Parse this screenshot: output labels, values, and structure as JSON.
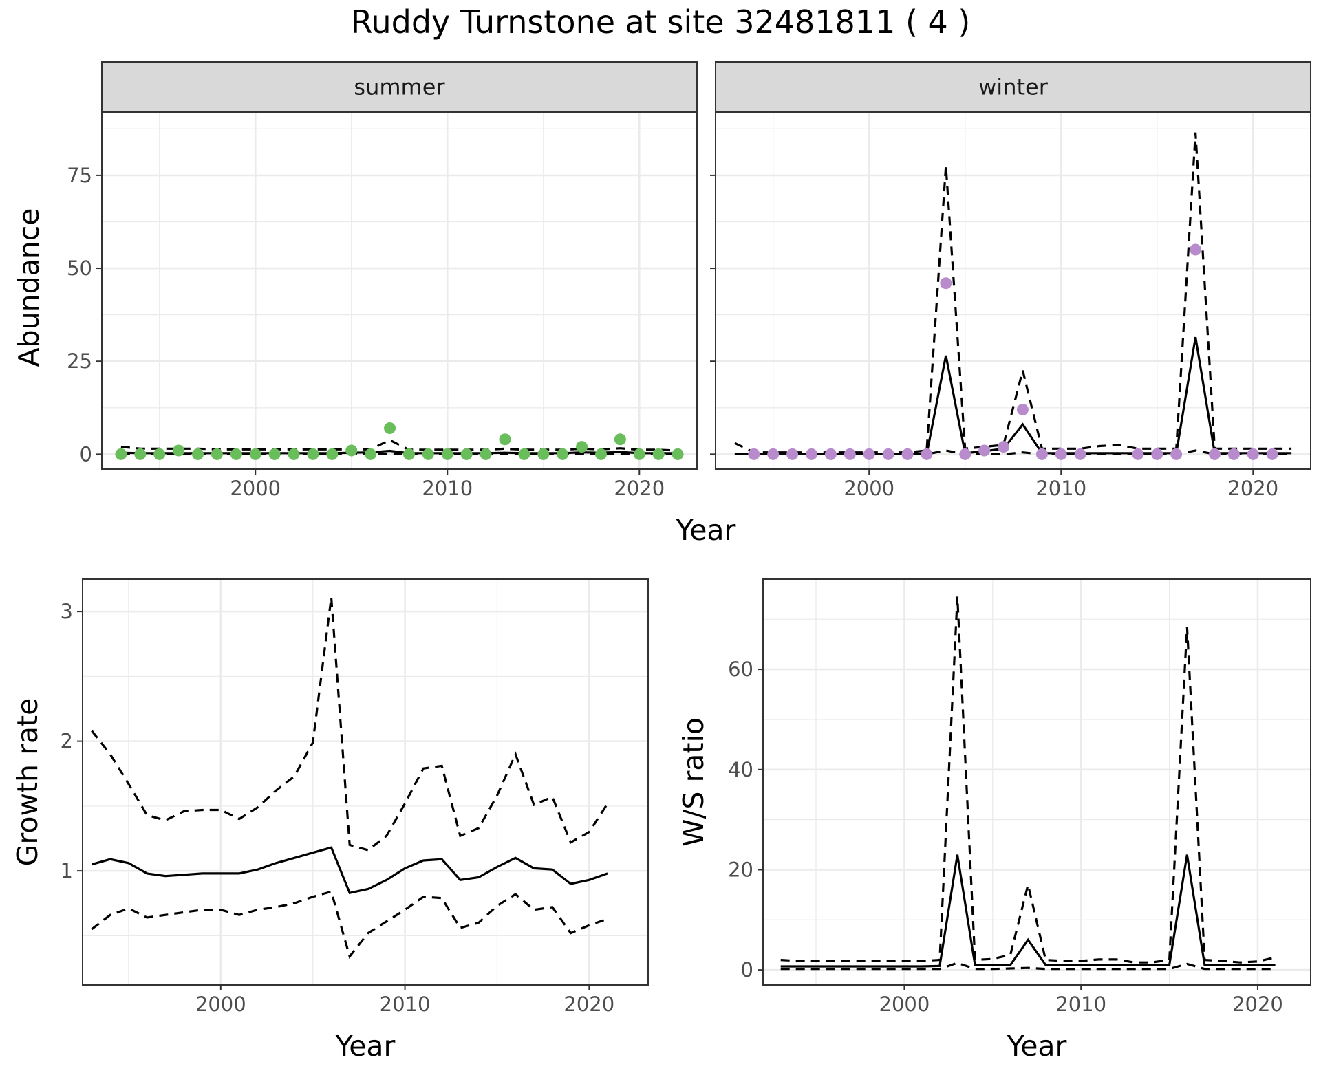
{
  "title": "Ruddy Turnstone at site 32481811 ( 4 )",
  "top_xlabel": "Year",
  "top_ylabel": "Abundance",
  "colors": {
    "summer": "#6abd5b",
    "winter": "#b88ccc",
    "line": "#000000"
  },
  "chart_data": [
    {
      "type": "line",
      "facet": "summer",
      "xlim": [
        1992,
        2023
      ],
      "ylim": [
        -4,
        92
      ],
      "x_ticks": [
        2000,
        2010,
        2020
      ],
      "y_ticks": [
        0,
        25,
        50,
        75
      ],
      "xlabel": "Year",
      "ylabel": "Abundance",
      "estimate": {
        "x": [
          1993,
          1994,
          1995,
          1996,
          1997,
          1998,
          1999,
          2000,
          2001,
          2002,
          2003,
          2004,
          2005,
          2006,
          2007,
          2008,
          2009,
          2010,
          2011,
          2012,
          2013,
          2014,
          2015,
          2016,
          2017,
          2018,
          2019,
          2020,
          2021,
          2022
        ],
        "y": [
          0.4,
          0.3,
          0.3,
          0.3,
          0.3,
          0.3,
          0.3,
          0.3,
          0.3,
          0.3,
          0.3,
          0.3,
          0.4,
          0.5,
          0.9,
          0.3,
          0.3,
          0.3,
          0.3,
          0.3,
          0.4,
          0.3,
          0.3,
          0.3,
          0.5,
          0.4,
          0.6,
          0.3,
          0.3,
          0.3
        ]
      },
      "upper": {
        "x": [
          1993,
          1994,
          1995,
          1996,
          1997,
          1998,
          1999,
          2000,
          2001,
          2002,
          2003,
          2004,
          2005,
          2006,
          2007,
          2008,
          2009,
          2010,
          2011,
          2012,
          2013,
          2014,
          2015,
          2016,
          2017,
          2018,
          2019,
          2020,
          2021,
          2022
        ],
        "y": [
          2,
          1.5,
          1.5,
          1.5,
          1.5,
          1.3,
          1.3,
          1.3,
          1.3,
          1.3,
          1.3,
          1.3,
          1.3,
          1.3,
          3.8,
          1.2,
          1.2,
          1.2,
          1.2,
          1.2,
          1.5,
          1.2,
          1.2,
          1.2,
          1.5,
          1.3,
          1.6,
          1.2,
          1.2,
          1
        ]
      },
      "lower": {
        "x": [
          1993,
          1994,
          1995,
          1996,
          1997,
          1998,
          1999,
          2000,
          2001,
          2002,
          2003,
          2004,
          2005,
          2006,
          2007,
          2008,
          2009,
          2010,
          2011,
          2012,
          2013,
          2014,
          2015,
          2016,
          2017,
          2018,
          2019,
          2020,
          2021,
          2022
        ],
        "y": [
          0,
          0,
          0,
          0,
          0,
          0,
          0,
          0,
          0,
          0,
          0,
          0,
          0,
          0,
          0.1,
          0,
          0,
          0,
          0,
          0,
          0,
          0,
          0,
          0,
          0,
          0,
          0,
          0,
          0,
          0
        ]
      },
      "points": {
        "x": [
          1993,
          1994,
          1995,
          1996,
          1997,
          1998,
          1999,
          2000,
          2001,
          2002,
          2003,
          2004,
          2005,
          2006,
          2007,
          2008,
          2009,
          2010,
          2011,
          2012,
          2013,
          2014,
          2015,
          2016,
          2017,
          2018,
          2019,
          2020,
          2021,
          2022
        ],
        "y": [
          0,
          0,
          0,
          1,
          0,
          0,
          0,
          0,
          0,
          0,
          0,
          0,
          1,
          0,
          7,
          0,
          0,
          0,
          0,
          0,
          4,
          0,
          0,
          0,
          2,
          0,
          4,
          0,
          0,
          0
        ]
      }
    },
    {
      "type": "line",
      "facet": "winter",
      "xlim": [
        1992,
        2023
      ],
      "ylim": [
        -4,
        92
      ],
      "x_ticks": [
        2000,
        2010,
        2020
      ],
      "y_ticks": [
        0,
        25,
        50,
        75
      ],
      "xlabel": "Year",
      "ylabel": "Abundance",
      "estimate": {
        "x": [
          1993,
          1994,
          1995,
          1996,
          1997,
          1998,
          1999,
          2000,
          2001,
          2002,
          2003,
          2004,
          2005,
          2006,
          2007,
          2008,
          2009,
          2010,
          2011,
          2012,
          2013,
          2014,
          2015,
          2016,
          2017,
          2018,
          2019,
          2020,
          2021,
          2022
        ],
        "y": [
          0,
          0,
          0,
          0,
          0,
          0,
          0,
          0,
          0,
          0,
          0,
          26.5,
          0.3,
          0.8,
          1.5,
          8,
          0.3,
          0.3,
          0.3,
          0.3,
          0.3,
          0.3,
          0.3,
          0.3,
          31.5,
          0.3,
          0.3,
          0.3,
          0.3,
          0.3
        ]
      },
      "upper": {
        "x": [
          1993,
          1994,
          1995,
          1996,
          1997,
          1998,
          1999,
          2000,
          2001,
          2002,
          2003,
          2004,
          2005,
          2006,
          2007,
          2008,
          2009,
          2010,
          2011,
          2012,
          2013,
          2014,
          2015,
          2016,
          2017,
          2018,
          2019,
          2020,
          2021,
          2022
        ],
        "y": [
          3,
          0.5,
          0.5,
          0.5,
          0.5,
          0.5,
          0.5,
          0.5,
          0.5,
          0.5,
          1,
          77.5,
          1.5,
          2,
          2.5,
          22.5,
          1.5,
          1.5,
          1.5,
          2.2,
          2.5,
          1.5,
          1.5,
          1.5,
          86.5,
          1.5,
          1.5,
          1.5,
          1.5,
          1.5
        ]
      },
      "lower": {
        "x": [
          1993,
          1994,
          1995,
          1996,
          1997,
          1998,
          1999,
          2000,
          2001,
          2002,
          2003,
          2004,
          2005,
          2006,
          2007,
          2008,
          2009,
          2010,
          2011,
          2012,
          2013,
          2014,
          2015,
          2016,
          2017,
          2018,
          2019,
          2020,
          2021,
          2022
        ],
        "y": [
          0,
          0,
          0,
          0,
          0,
          0,
          0,
          0,
          0,
          0,
          0,
          1,
          0,
          0,
          0,
          0.5,
          0,
          0,
          0,
          0,
          0,
          0,
          0,
          0,
          1,
          0,
          0,
          0,
          0,
          0
        ]
      },
      "points": {
        "x": [
          1994,
          1995,
          1996,
          1997,
          1998,
          1999,
          2000,
          2001,
          2002,
          2003,
          2004,
          2005,
          2006,
          2007,
          2008,
          2009,
          2010,
          2011,
          2014,
          2015,
          2016,
          2017,
          2018,
          2019,
          2020,
          2021
        ],
        "y": [
          0,
          0,
          0,
          0,
          0,
          0,
          0,
          0,
          0,
          0,
          46,
          0,
          1,
          2,
          12,
          0,
          0,
          0,
          0,
          0,
          0,
          55,
          0,
          0,
          0,
          0
        ]
      }
    },
    {
      "type": "line",
      "facet": "growth",
      "xlim": [
        1992.5,
        2023.2
      ],
      "ylim": [
        0.12,
        3.25
      ],
      "x_ticks": [
        2000,
        2010,
        2020
      ],
      "y_ticks": [
        1,
        2,
        3
      ],
      "xlabel": "Year",
      "ylabel": "Growth rate",
      "estimate": {
        "x": [
          1993,
          1994,
          1995,
          1996,
          1997,
          1998,
          1999,
          2000,
          2001,
          2002,
          2003,
          2004,
          2005,
          2006,
          2007,
          2008,
          2009,
          2010,
          2011,
          2012,
          2013,
          2014,
          2015,
          2016,
          2017,
          2018,
          2019,
          2020,
          2021
        ],
        "y": [
          1.05,
          1.09,
          1.06,
          0.98,
          0.96,
          0.97,
          0.98,
          0.98,
          0.98,
          1.01,
          1.06,
          1.1,
          1.14,
          1.18,
          0.83,
          0.86,
          0.93,
          1.02,
          1.08,
          1.09,
          0.93,
          0.95,
          1.03,
          1.1,
          1.02,
          1.01,
          0.9,
          0.93,
          0.98
        ]
      },
      "upper": {
        "x": [
          1993,
          1994,
          1995,
          1996,
          1997,
          1998,
          1999,
          2000,
          2001,
          2002,
          2003,
          2004,
          2005,
          2006,
          2007,
          2008,
          2009,
          2010,
          2011,
          2012,
          2013,
          2014,
          2015,
          2016,
          2017,
          2018,
          2019,
          2020,
          2021
        ],
        "y": [
          2.08,
          1.9,
          1.67,
          1.43,
          1.39,
          1.46,
          1.47,
          1.47,
          1.4,
          1.49,
          1.62,
          1.73,
          1.99,
          3.11,
          1.2,
          1.16,
          1.27,
          1.52,
          1.79,
          1.81,
          1.27,
          1.33,
          1.58,
          1.9,
          1.51,
          1.57,
          1.22,
          1.3,
          1.52
        ]
      },
      "lower": {
        "x": [
          1993,
          1994,
          1995,
          1996,
          1997,
          1998,
          1999,
          2000,
          2001,
          2002,
          2003,
          2004,
          2005,
          2006,
          2007,
          2008,
          2009,
          2010,
          2011,
          2012,
          2013,
          2014,
          2015,
          2016,
          2017,
          2018,
          2019,
          2020,
          2021
        ],
        "y": [
          0.55,
          0.66,
          0.71,
          0.64,
          0.66,
          0.68,
          0.7,
          0.7,
          0.66,
          0.7,
          0.72,
          0.75,
          0.8,
          0.84,
          0.34,
          0.52,
          0.61,
          0.7,
          0.8,
          0.79,
          0.56,
          0.6,
          0.73,
          0.82,
          0.7,
          0.72,
          0.52,
          0.58,
          0.63
        ]
      }
    },
    {
      "type": "line",
      "facet": "ws_ratio",
      "xlim": [
        1992,
        2023
      ],
      "ylim": [
        -3,
        78
      ],
      "x_ticks": [
        2000,
        2010,
        2020
      ],
      "y_ticks": [
        0,
        20,
        40,
        60
      ],
      "xlabel": "Year",
      "ylabel": "W/S ratio",
      "estimate": {
        "x": [
          1993,
          1994,
          1995,
          1996,
          1997,
          1998,
          1999,
          2000,
          2001,
          2002,
          2003,
          2004,
          2005,
          2006,
          2007,
          2008,
          2009,
          2010,
          2011,
          2012,
          2013,
          2014,
          2015,
          2016,
          2017,
          2018,
          2019,
          2020,
          2021
        ],
        "y": [
          0.7,
          0.7,
          0.7,
          0.7,
          0.7,
          0.7,
          0.7,
          0.7,
          0.7,
          0.8,
          23,
          1,
          1,
          1,
          6,
          1,
          1,
          1,
          1,
          1,
          1,
          1,
          1,
          23,
          1,
          1,
          1,
          1,
          1
        ]
      },
      "upper": {
        "x": [
          1993,
          1994,
          1995,
          1996,
          1997,
          1998,
          1999,
          2000,
          2001,
          2002,
          2003,
          2004,
          2005,
          2006,
          2007,
          2008,
          2009,
          2010,
          2011,
          2012,
          2013,
          2014,
          2015,
          2016,
          2017,
          2018,
          2019,
          2020,
          2021
        ],
        "y": [
          2,
          1.8,
          1.8,
          1.8,
          1.8,
          1.8,
          1.8,
          1.8,
          1.8,
          2,
          74.5,
          2,
          2.2,
          3,
          17,
          2,
          1.8,
          1.8,
          2.1,
          2.1,
          1.5,
          1.5,
          2,
          68.5,
          2,
          1.8,
          1.5,
          1.7,
          2.5
        ]
      },
      "lower": {
        "x": [
          1993,
          1994,
          1995,
          1996,
          1997,
          1998,
          1999,
          2000,
          2001,
          2002,
          2003,
          2004,
          2005,
          2006,
          2007,
          2008,
          2009,
          2010,
          2011,
          2012,
          2013,
          2014,
          2015,
          2016,
          2017,
          2018,
          2019,
          2020,
          2021
        ],
        "y": [
          0.2,
          0.2,
          0.2,
          0.2,
          0.2,
          0.2,
          0.2,
          0.2,
          0.2,
          0.2,
          1.4,
          0.2,
          0.2,
          0.3,
          0.4,
          0.2,
          0.2,
          0.2,
          0.2,
          0.2,
          0.2,
          0.2,
          0.2,
          1.2,
          0.2,
          0.2,
          0.2,
          0.2,
          0.2
        ]
      }
    }
  ]
}
